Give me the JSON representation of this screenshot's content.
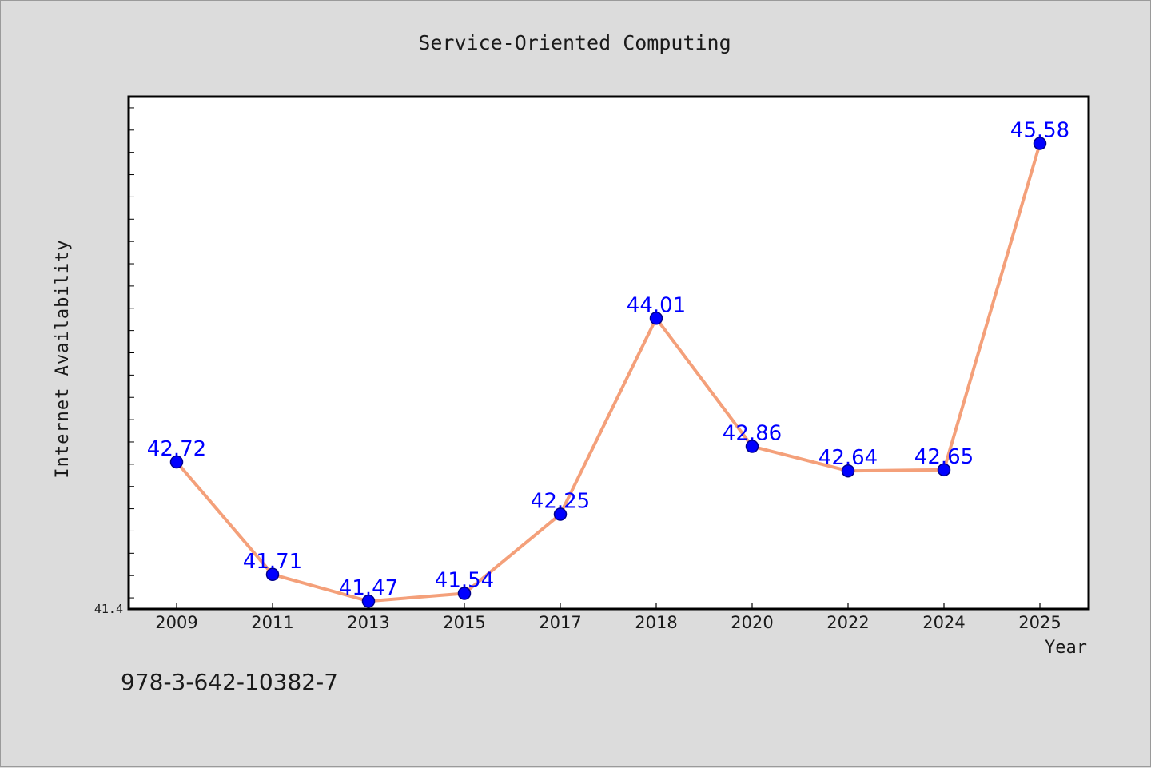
{
  "colors": {
    "background": "#dcdcdc",
    "plot_background": "#ffffff",
    "line": "#f4a07a",
    "marker": "#0000ff",
    "marker_edge": "#00008b",
    "label": "#0000ff",
    "text": "#1a1a1a"
  },
  "footer_text": "978-3-642-10382-7",
  "chart_data": {
    "type": "line",
    "title": "Service-Oriented Computing",
    "xlabel": "Year",
    "ylabel": "Internet Availability",
    "categories": [
      "2009",
      "2011",
      "2013",
      "2015",
      "2017",
      "2018",
      "2020",
      "2022",
      "2024",
      "2025"
    ],
    "series": [
      {
        "values": [
          42.72,
          41.71,
          41.47,
          41.54,
          42.25,
          44.01,
          42.86,
          42.64,
          42.65,
          45.58
        ],
        "labels": [
          "42.72",
          "41.71",
          "41.47",
          "41.54",
          "42.25",
          "44.01",
          "42.86",
          "42.64",
          "42.65",
          "45.58"
        ]
      }
    ],
    "ylim": [
      41.4,
      46.0
    ],
    "y_tick_labels": [
      "41.4"
    ],
    "grid": false,
    "legend": "none"
  }
}
